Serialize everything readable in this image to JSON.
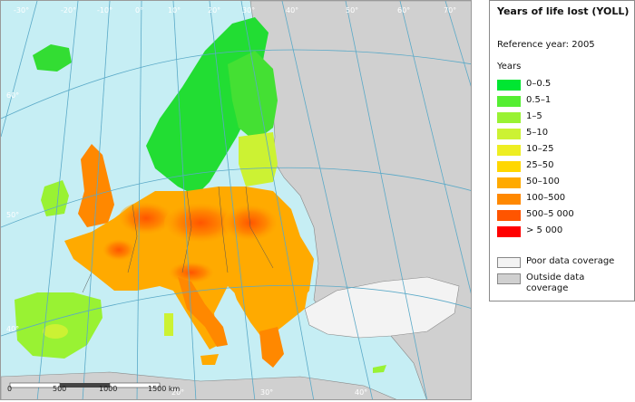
{
  "legend": {
    "title": "Years of life lost (YOLL)",
    "reference": "Reference year: 2005",
    "unit": "Years",
    "classes": [
      {
        "label": "0–0.5",
        "color": "#00e632"
      },
      {
        "label": "0.5–1",
        "color": "#55ee33"
      },
      {
        "label": "1–5",
        "color": "#99f233"
      },
      {
        "label": "5–10",
        "color": "#ccf233"
      },
      {
        "label": "10–25",
        "color": "#eeee22"
      },
      {
        "label": "25–50",
        "color": "#ffd700"
      },
      {
        "label": "50–100",
        "color": "#ffaa00"
      },
      {
        "label": "100–500",
        "color": "#ff8800"
      },
      {
        "label": "500–5 000",
        "color": "#ff5500"
      },
      {
        "label": "> 5 000",
        "color": "#ff0000"
      }
    ],
    "coverage": [
      {
        "label": "Poor data coverage",
        "color": "#f3f3f3"
      },
      {
        "label": "Outside data coverage",
        "color": "#d0d0d0"
      }
    ]
  },
  "map": {
    "sea_color": "#c6eef4",
    "outside_color": "#d0d0d0",
    "graticule_labels": {
      "top": [
        "-30°",
        "-20°",
        "-10°",
        "0°",
        "10°",
        "20°",
        "30°",
        "40°",
        "50°",
        "60°",
        "70°"
      ],
      "left": [
        "60°",
        "50°",
        "40°"
      ],
      "bottom": [
        "20°",
        "30°",
        "40°"
      ]
    },
    "scale_bar": {
      "ticks": [
        "0",
        "500",
        "1000",
        "1500 km"
      ]
    }
  }
}
